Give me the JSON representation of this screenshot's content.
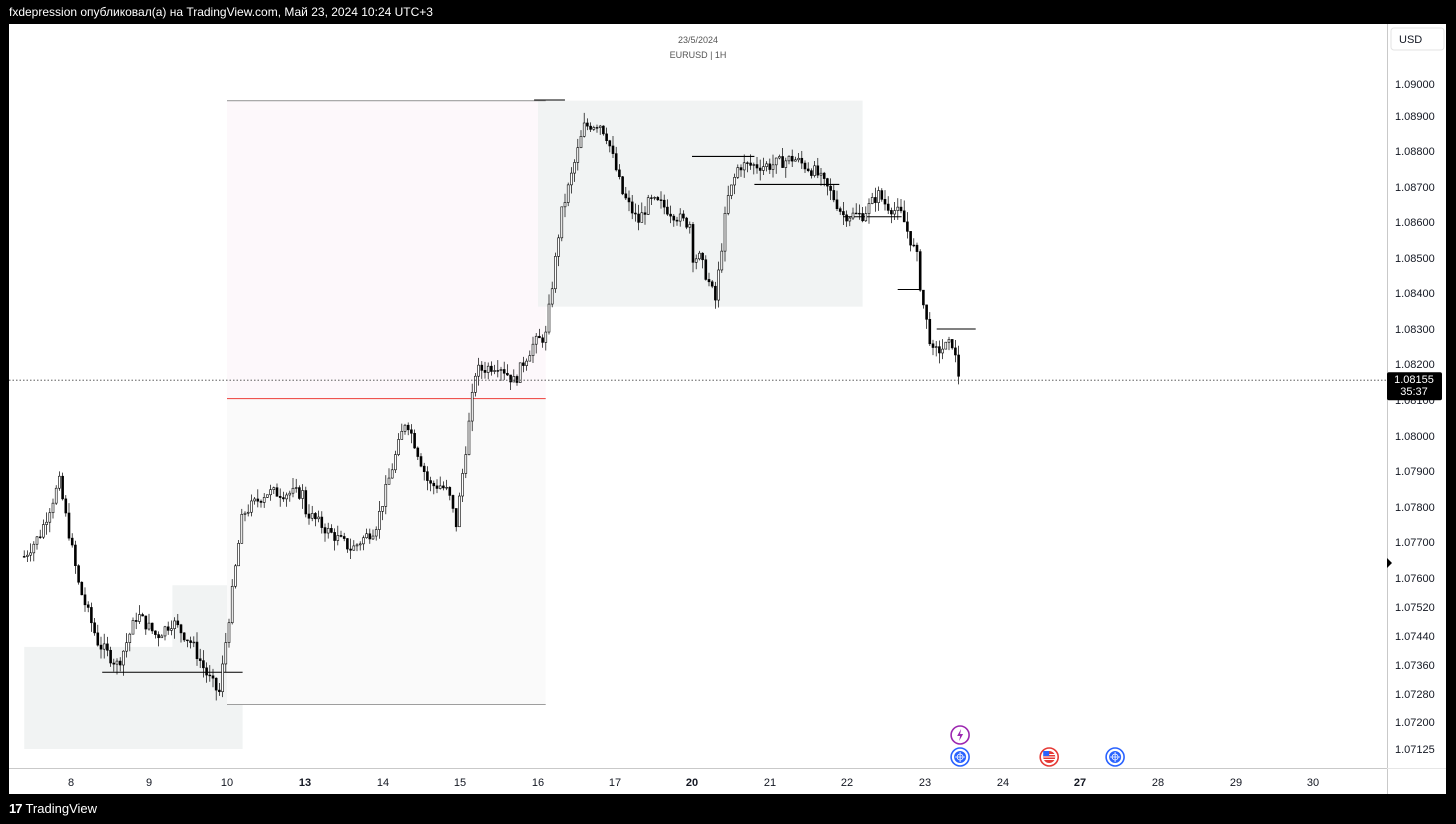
{
  "header": {
    "published_text": "fxdepression опубликовал(а) на TradingView.com, Май 23, 2024 10:24 UTC+3"
  },
  "footer": {
    "brand": "TradingView",
    "logo_glyph": "17"
  },
  "colors": {
    "candle": "#000000",
    "red_level": "#ef5350",
    "zone": "#f1f3f3",
    "panel": "#ffffff",
    "badge_bg": "#000000",
    "badge_text": "#ffffff",
    "event_purple": "#9c27b0",
    "event_blue": "#2962ff",
    "event_red": "#e53935"
  },
  "chart_data": {
    "type": "candlestick",
    "title": "23/5/2024",
    "subtitle": "EURUSD | 1H",
    "currency": "USD",
    "current_price": "1.08155",
    "countdown": "35:37",
    "y_ticks": [
      "1.09000",
      "1.08900",
      "1.08800",
      "1.08700",
      "1.08600",
      "1.08500",
      "1.08400",
      "1.08300",
      "1.08200",
      "1.08100",
      "1.08000",
      "1.07900",
      "1.07800",
      "1.07700",
      "1.07600",
      "1.07520",
      "1.07440",
      "1.07360",
      "1.07280",
      "1.07200",
      "1.07125"
    ],
    "x_ticks": [
      {
        "label": "8",
        "bold": false
      },
      {
        "label": "9",
        "bold": false
      },
      {
        "label": "10",
        "bold": false
      },
      {
        "label": "13",
        "bold": true
      },
      {
        "label": "14",
        "bold": false
      },
      {
        "label": "15",
        "bold": false
      },
      {
        "label": "16",
        "bold": false
      },
      {
        "label": "17",
        "bold": false
      },
      {
        "label": "20",
        "bold": true
      },
      {
        "label": "21",
        "bold": false
      },
      {
        "label": "22",
        "bold": false
      },
      {
        "label": "23",
        "bold": false
      },
      {
        "label": "24",
        "bold": false
      },
      {
        "label": "27",
        "bold": true
      },
      {
        "label": "28",
        "bold": false
      },
      {
        "label": "29",
        "bold": false
      },
      {
        "label": "30",
        "bold": false
      }
    ],
    "path_days": [
      7.4,
      7.6,
      7.85,
      8.1,
      8.35,
      8.6,
      8.85,
      9.1,
      9.3,
      9.55,
      9.75,
      9.9,
      10.0,
      10.2,
      10.5,
      12.8,
      13.3,
      13.6,
      13.9,
      14.3,
      14.6,
      14.75,
      14.85,
      14.95,
      15.2,
      15.5,
      15.7,
      15.8,
      15.95,
      16.1,
      16.3,
      16.6,
      16.8,
      16.9,
      17.1,
      17.3,
      17.45,
      17.6,
      17.9,
      19.75,
      20.1,
      20.3,
      20.45,
      20.6,
      20.7,
      21.0,
      21.3,
      21.6,
      21.8,
      21.95,
      22.2,
      22.4,
      22.5,
      22.7,
      22.9,
      22.95,
      23.1,
      23.35,
      23.45
    ],
    "path_prices": [
      1.0766,
      1.0772,
      1.0787,
      1.0758,
      1.0742,
      1.0736,
      1.075,
      1.0744,
      1.0748,
      1.0742,
      1.0733,
      1.0728,
      1.0745,
      1.0778,
      1.0784,
      1.0783,
      1.0773,
      1.0768,
      1.0774,
      1.0805,
      1.0786,
      1.0786,
      1.0784,
      1.0775,
      1.0818,
      1.082,
      1.0815,
      1.082,
      1.0826,
      1.0828,
      1.0862,
      1.0887,
      1.0888,
      1.0884,
      1.0868,
      1.086,
      1.0866,
      1.0865,
      1.086,
      1.0852,
      1.085,
      1.0838,
      1.0866,
      1.0876,
      1.0876,
      1.0876,
      1.0878,
      1.0874,
      1.0868,
      1.0862,
      1.0862,
      1.0868,
      1.0865,
      1.0862,
      1.085,
      1.084,
      1.0823,
      1.0826,
      1.0815
    ],
    "zones": [
      {
        "from_day": 7.4,
        "to_day": 10.2,
        "from_price": 1.07125,
        "to_price": 1.0741,
        "shade": "zone"
      },
      {
        "from_day": 9.3,
        "to_day": 10.0,
        "from_price": 1.0725,
        "to_price": 1.0758,
        "shade": "zone"
      },
      {
        "from_day": 10.0,
        "to_day": 16.1,
        "from_price": 1.0725,
        "to_price": 1.08104,
        "shade": "light"
      },
      {
        "from_day": 10.0,
        "to_day": 16.1,
        "from_price": 1.08104,
        "to_price": 1.08948,
        "shade": "pink"
      },
      {
        "from_day": 16.0,
        "to_day": 22.2,
        "from_price": 1.08362,
        "to_price": 1.08948,
        "shade": "zone"
      }
    ],
    "levels": [
      {
        "from_day": 8.4,
        "to_day": 10.2,
        "price": 1.0734,
        "color": "black"
      },
      {
        "from_day": 10.0,
        "to_day": 16.1,
        "price": 1.08948,
        "color": "gray"
      },
      {
        "from_day": 10.0,
        "to_day": 16.1,
        "price": 1.08104,
        "color": "red"
      },
      {
        "from_day": 10.0,
        "to_day": 16.1,
        "price": 1.0725,
        "color": "gray"
      },
      {
        "from_day": 15.95,
        "to_day": 16.35,
        "price": 1.0895,
        "color": "black"
      },
      {
        "from_day": 19.8,
        "to_day": 20.8,
        "price": 1.08785,
        "color": "black"
      },
      {
        "from_day": 20.8,
        "to_day": 21.9,
        "price": 1.08707,
        "color": "black"
      },
      {
        "from_day": 21.95,
        "to_day": 22.7,
        "price": 1.08615,
        "color": "black"
      },
      {
        "from_day": 22.65,
        "to_day": 22.95,
        "price": 1.0841,
        "color": "black"
      },
      {
        "from_day": 23.15,
        "to_day": 23.65,
        "price": 1.083,
        "color": "black"
      }
    ],
    "events": [
      {
        "day": 23.45,
        "row": 0,
        "kind": "purple",
        "icon": "lightning-icon"
      },
      {
        "day": 23.45,
        "row": 1,
        "kind": "blue",
        "icon": "globe-icon"
      },
      {
        "day": 24.6,
        "row": 1,
        "kind": "red",
        "icon": "us-flag-icon"
      },
      {
        "day": 27.45,
        "row": 1,
        "kind": "blue",
        "icon": "globe-icon"
      }
    ]
  }
}
